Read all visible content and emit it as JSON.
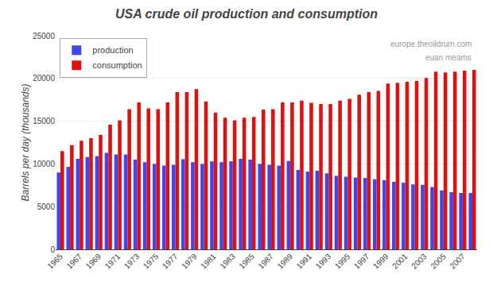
{
  "chart_data": {
    "type": "bar",
    "title": "USA crude oil production and consumption",
    "ylabel": "Barrels per day (thousands)",
    "annotations": [
      "europe.theoildrum.com",
      "euan meams"
    ],
    "categories": [
      "1965",
      null,
      "1967",
      null,
      "1969",
      null,
      "1971",
      null,
      "1973",
      null,
      "1975",
      null,
      "1977",
      null,
      "1979",
      null,
      "1981",
      null,
      "1983",
      null,
      "1985",
      null,
      "1987",
      null,
      "1989",
      null,
      "1991",
      null,
      "1993",
      null,
      "1995",
      null,
      "1997",
      null,
      "1999",
      null,
      "2001",
      null,
      "2003",
      null,
      "2005",
      null,
      "2007",
      null
    ],
    "series": [
      {
        "name": "production",
        "color": "#4444ee",
        "values": [
          9000,
          9650,
          10600,
          10800,
          10900,
          11300,
          11100,
          11100,
          10500,
          10200,
          10000,
          9800,
          9900,
          10550,
          10200,
          10000,
          10300,
          10200,
          10300,
          10600,
          10500,
          10000,
          9900,
          9800,
          10350,
          9300,
          9100,
          9200,
          8900,
          8600,
          8500,
          8400,
          8350,
          8200,
          8100,
          7900,
          7800,
          7600,
          7550,
          7300,
          6900,
          6700,
          6600,
          6600
        ]
      },
      {
        "name": "consumption",
        "color": "#dd1111",
        "values": [
          11500,
          12200,
          12700,
          13000,
          13400,
          14600,
          15100,
          16400,
          17200,
          16500,
          16400,
          17200,
          18400,
          18400,
          18750,
          17300,
          16000,
          15400,
          15100,
          15400,
          15500,
          16350,
          16400,
          17200,
          17200,
          17400,
          17150,
          17000,
          17000,
          17400,
          17600,
          18100,
          18400,
          18550,
          19400,
          19500,
          19600,
          19700,
          20050,
          20800,
          20700,
          20800,
          20900,
          21000
        ]
      }
    ],
    "ylim": [
      0,
      25000
    ],
    "yticks": [
      0,
      5000,
      10000,
      15000,
      20000,
      25000
    ],
    "grid": true,
    "legend": "upper left"
  }
}
